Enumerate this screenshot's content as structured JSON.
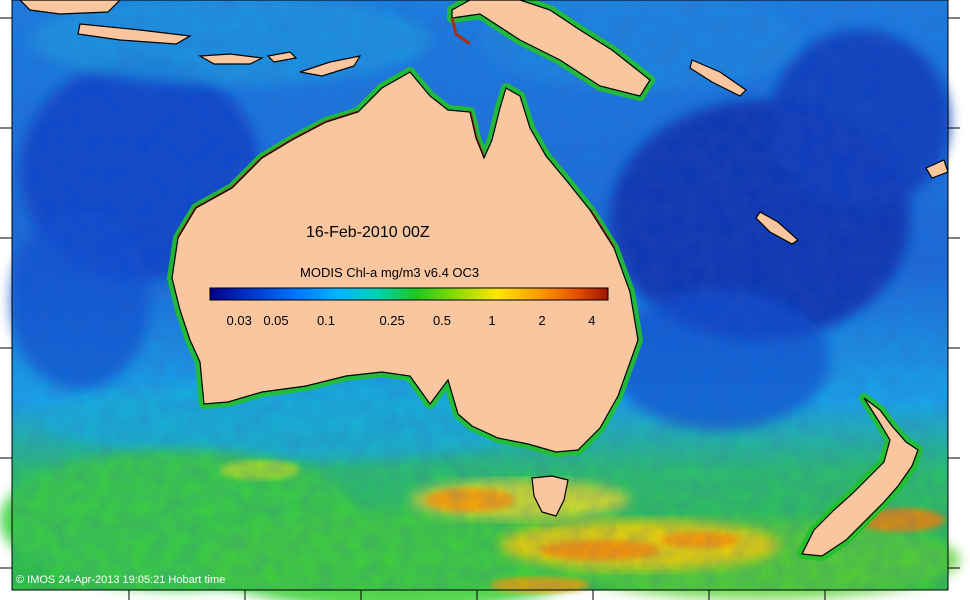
{
  "map": {
    "date_label": "16-Feb-2010 00Z",
    "colorbar": {
      "title": "MODIS Chl-a mg/m3 v6.4 OC3",
      "ticks": [
        "0.03",
        "0.05",
        "0.1",
        "0.25",
        "0.5",
        "1",
        "2",
        "4"
      ],
      "tick_values": [
        0.03,
        0.05,
        0.1,
        0.25,
        0.5,
        1,
        2,
        4
      ],
      "range": [
        0.02,
        5
      ],
      "scale": "log",
      "colors": [
        "#00008b",
        "#0033cc",
        "#0077ff",
        "#00b4ff",
        "#00d2b4",
        "#1ec81e",
        "#8cdc00",
        "#ffe600",
        "#ffa000",
        "#e65000",
        "#a01400"
      ]
    },
    "credit": "© IMOS 24-Apr-2013 19:05:21 Hobart time",
    "colors": {
      "land": "#f9c6a0",
      "deep_ocean": "#1040c0",
      "open_ocean": "#1a7fe0",
      "southern_ocean": "#20c040",
      "bloom": "#ff9a00",
      "coastal": "#a83010"
    }
  }
}
